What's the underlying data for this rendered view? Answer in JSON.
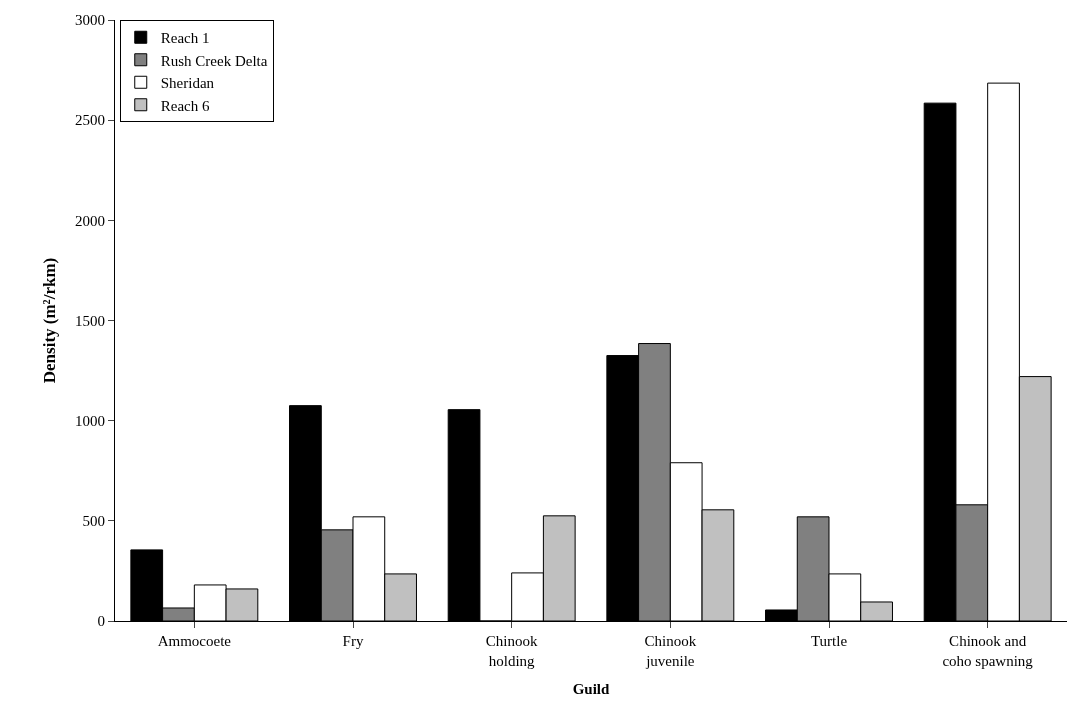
{
  "chart_data": {
    "type": "bar",
    "xlabel": "Guild",
    "ylabel": "Density (m²/rkm)",
    "categories": [
      "Ammocoete",
      "Fry",
      "Chinook holding",
      "Chinook juvenile",
      "Turtle",
      "Chinook and coho spawning"
    ],
    "series": [
      {
        "name": "Reach 1",
        "color": "#000000",
        "values": [
          355,
          1075,
          1055,
          1325,
          55,
          2585
        ]
      },
      {
        "name": "Rush Creek Delta",
        "color": "#808080",
        "values": [
          65,
          455,
          0,
          1385,
          520,
          580
        ]
      },
      {
        "name": "Sheridan",
        "color": "#ffffff",
        "values": [
          180,
          520,
          240,
          790,
          235,
          2685
        ]
      },
      {
        "name": "Reach 6",
        "color": "#c0c0c0",
        "values": [
          160,
          235,
          525,
          555,
          95,
          1220
        ]
      }
    ],
    "ylim": [
      0,
      3000
    ],
    "yticks": [
      0,
      500,
      1000,
      1500,
      2000,
      2500,
      3000
    ],
    "legend": "top left"
  }
}
